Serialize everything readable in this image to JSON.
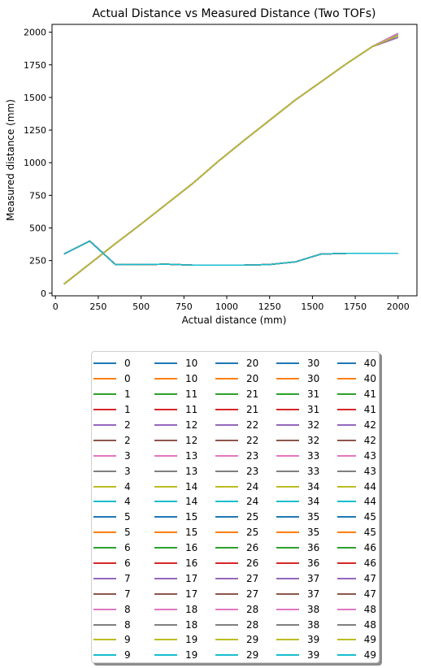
{
  "colors": {
    "palette": [
      "#1f77b4",
      "#ff7f0e",
      "#2ca02c",
      "#d62728",
      "#9467bd",
      "#8c564b",
      "#e377c2",
      "#7f7f7f",
      "#bcbd22",
      "#17becf"
    ]
  },
  "chart_data": {
    "type": "line",
    "title": "Actual Distance vs Measured Distance (Two TOFs)",
    "xlabel": "Actual distance (mm)",
    "ylabel": "Measured distance (mm)",
    "xlim": [
      -20,
      2110
    ],
    "ylim": [
      -20,
      2060
    ],
    "xticks": [
      0,
      250,
      500,
      750,
      1000,
      1250,
      1500,
      1750,
      2000
    ],
    "yticks": [
      0,
      250,
      500,
      750,
      1000,
      1250,
      1500,
      1750,
      2000
    ],
    "grid": false,
    "legend_placement": "below",
    "x": [
      50,
      200,
      350,
      500,
      650,
      800,
      950,
      1100,
      1250,
      1400,
      1550,
      1700,
      1850,
      2000
    ],
    "tof_a_values": [
      70,
      225,
      380,
      530,
      685,
      840,
      1010,
      1170,
      1325,
      1480,
      1620,
      1760,
      1890,
      1990
    ],
    "tof_a_end_variants": [
      1990,
      1975,
      1960
    ],
    "tof_b_values": [
      300,
      400,
      220,
      220,
      222,
      215,
      215,
      215,
      220,
      240,
      300,
      305,
      305,
      305
    ],
    "series_names": [
      "0",
      "0",
      "1",
      "1",
      "2",
      "2",
      "3",
      "3",
      "4",
      "4",
      "5",
      "5",
      "6",
      "6",
      "7",
      "7",
      "8",
      "8",
      "9",
      "9",
      "10",
      "10",
      "11",
      "11",
      "12",
      "12",
      "13",
      "13",
      "14",
      "14",
      "15",
      "15",
      "16",
      "16",
      "17",
      "17",
      "18",
      "18",
      "19",
      "19",
      "20",
      "20",
      "21",
      "21",
      "22",
      "22",
      "23",
      "23",
      "24",
      "24",
      "25",
      "25",
      "26",
      "26",
      "27",
      "27",
      "28",
      "28",
      "29",
      "29",
      "30",
      "30",
      "31",
      "31",
      "32",
      "32",
      "33",
      "33",
      "34",
      "34",
      "35",
      "35",
      "36",
      "36",
      "37",
      "37",
      "38",
      "38",
      "39",
      "39",
      "40",
      "40",
      "41",
      "41",
      "42",
      "42",
      "43",
      "43",
      "44",
      "44",
      "45",
      "45",
      "46",
      "46",
      "47",
      "47",
      "48",
      "48",
      "49",
      "49"
    ]
  }
}
